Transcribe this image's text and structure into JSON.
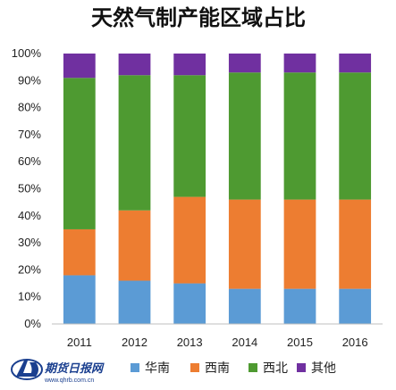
{
  "chart_data": {
    "type": "bar",
    "stacked": true,
    "title": "天然气制产能区域占比",
    "categories": [
      "2011",
      "2012",
      "2013",
      "2014",
      "2015",
      "2016"
    ],
    "ylim": [
      0,
      100
    ],
    "yticks": [
      "0%",
      "10%",
      "20%",
      "30%",
      "40%",
      "50%",
      "60%",
      "70%",
      "80%",
      "90%",
      "100%"
    ],
    "legend_position": "bottom",
    "grid": false,
    "series": [
      {
        "name": "华南",
        "color": "#5b9bd5",
        "values": [
          18,
          16,
          15,
          13,
          13,
          13
        ]
      },
      {
        "name": "西南",
        "color": "#ed7d31",
        "values": [
          17,
          26,
          32,
          33,
          33,
          33
        ]
      },
      {
        "name": "西北",
        "color": "#4e9a31",
        "values": [
          56,
          50,
          45,
          47,
          47,
          47
        ]
      },
      {
        "name": "其他",
        "color": "#7030a0",
        "values": [
          9,
          8,
          8,
          7,
          7,
          7
        ]
      }
    ]
  },
  "watermark": {
    "name": "期货日报网",
    "url": "www.qhrb.com.cn",
    "icon": "qhrb-logo-icon",
    "color": "#1a3f8f"
  }
}
